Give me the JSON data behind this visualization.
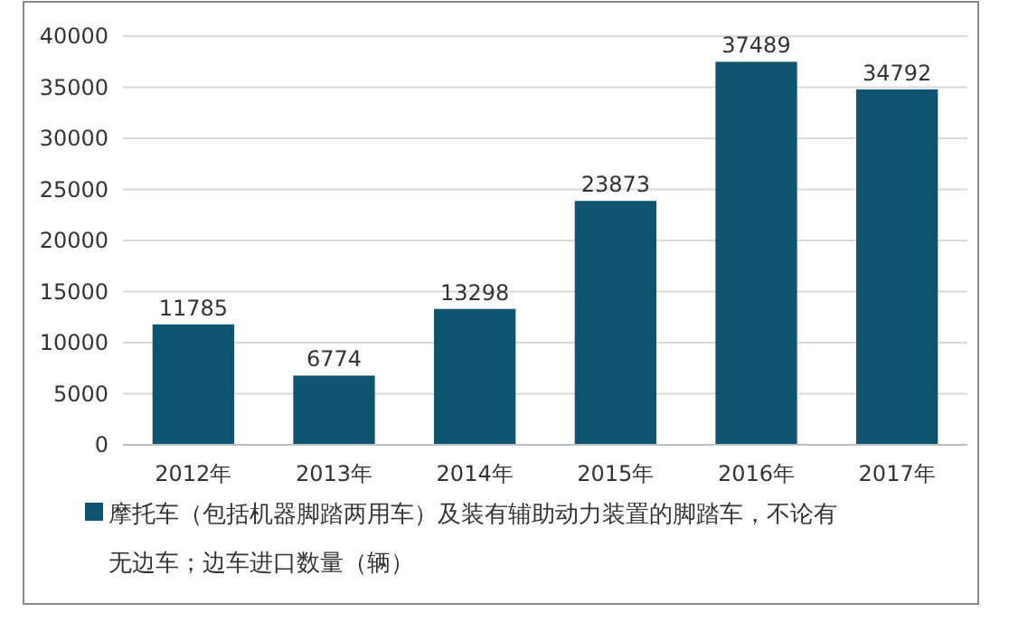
{
  "chart_data": {
    "type": "bar",
    "categories": [
      "2012年",
      "2013年",
      "2014年",
      "2015年",
      "2016年",
      "2017年"
    ],
    "series": [
      {
        "name": "摩托车（包括机器脚踏两用车）及装有辅助动力装置的脚踏车，不论有无边车；边车进口数量（辆）",
        "color": "#0e5470",
        "values": [
          11785,
          6774,
          13298,
          23873,
          37489,
          34792
        ]
      }
    ],
    "ylim": [
      0,
      40000
    ],
    "yticks": [
      0,
      5000,
      10000,
      15000,
      20000,
      25000,
      30000,
      35000,
      40000
    ],
    "grid": "y",
    "legend": "bottom",
    "data_labels": true
  }
}
